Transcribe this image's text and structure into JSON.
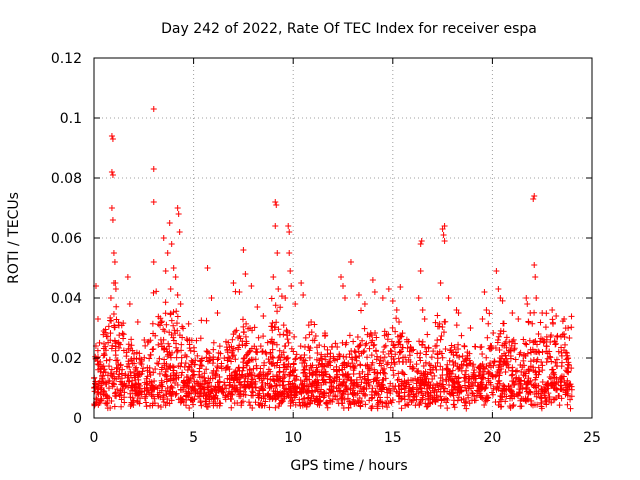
{
  "chart_data": {
    "type": "scatter",
    "title": "Day 242 of 2022, Rate Of TEC Index for receiver espa",
    "xlabel": "GPS time / hours",
    "ylabel": "ROTI / TECUs",
    "xlim": [
      0,
      25
    ],
    "ylim": [
      0,
      0.12
    ],
    "xticks": [
      0,
      5,
      10,
      15,
      20,
      25
    ],
    "xtick_labels": [
      "0",
      "5",
      "10",
      "15",
      "20",
      "25"
    ],
    "yticks": [
      0,
      0.02,
      0.04,
      0.06,
      0.08,
      0.1,
      0.12
    ],
    "ytick_labels": [
      "0",
      "0.02",
      "0.04",
      "0.06",
      "0.08",
      "0.1",
      "0.12"
    ],
    "grid": true,
    "marker": "+",
    "series": [
      {
        "name": "ROTI",
        "color": "#ff0000",
        "note": "dense band of ~0.003-0.03 TECU/s from 0 to 24 h with sparse higher values",
        "outliers": [
          {
            "x": 0.1,
            "y": 0.044
          },
          {
            "x": 0.2,
            "y": 0.033
          },
          {
            "x": 0.9,
            "y": 0.094
          },
          {
            "x": 0.95,
            "y": 0.093
          },
          {
            "x": 0.9,
            "y": 0.082
          },
          {
            "x": 0.95,
            "y": 0.081
          },
          {
            "x": 0.9,
            "y": 0.07
          },
          {
            "x": 0.95,
            "y": 0.066
          },
          {
            "x": 1.0,
            "y": 0.055
          },
          {
            "x": 1.05,
            "y": 0.052
          },
          {
            "x": 1.0,
            "y": 0.045
          },
          {
            "x": 1.1,
            "y": 0.043
          },
          {
            "x": 0.85,
            "y": 0.04
          },
          {
            "x": 1.7,
            "y": 0.047
          },
          {
            "x": 1.8,
            "y": 0.038
          },
          {
            "x": 2.2,
            "y": 0.032
          },
          {
            "x": 3.0,
            "y": 0.103
          },
          {
            "x": 3.0,
            "y": 0.083
          },
          {
            "x": 3.0,
            "y": 0.072
          },
          {
            "x": 3.0,
            "y": 0.052
          },
          {
            "x": 3.5,
            "y": 0.06
          },
          {
            "x": 3.6,
            "y": 0.049
          },
          {
            "x": 3.7,
            "y": 0.055
          },
          {
            "x": 3.8,
            "y": 0.065
          },
          {
            "x": 3.9,
            "y": 0.058
          },
          {
            "x": 4.0,
            "y": 0.05
          },
          {
            "x": 3.85,
            "y": 0.043
          },
          {
            "x": 4.2,
            "y": 0.07
          },
          {
            "x": 4.25,
            "y": 0.068
          },
          {
            "x": 4.3,
            "y": 0.062
          },
          {
            "x": 4.1,
            "y": 0.047
          },
          {
            "x": 4.2,
            "y": 0.041
          },
          {
            "x": 4.35,
            "y": 0.038
          },
          {
            "x": 5.7,
            "y": 0.05
          },
          {
            "x": 5.9,
            "y": 0.04
          },
          {
            "x": 6.2,
            "y": 0.035
          },
          {
            "x": 7.0,
            "y": 0.045
          },
          {
            "x": 7.3,
            "y": 0.042
          },
          {
            "x": 7.5,
            "y": 0.056
          },
          {
            "x": 7.6,
            "y": 0.048
          },
          {
            "x": 7.9,
            "y": 0.044
          },
          {
            "x": 8.2,
            "y": 0.037
          },
          {
            "x": 8.5,
            "y": 0.034
          },
          {
            "x": 9.1,
            "y": 0.072
          },
          {
            "x": 9.15,
            "y": 0.071
          },
          {
            "x": 9.1,
            "y": 0.064
          },
          {
            "x": 9.2,
            "y": 0.055
          },
          {
            "x": 9.0,
            "y": 0.047
          },
          {
            "x": 9.25,
            "y": 0.043
          },
          {
            "x": 9.6,
            "y": 0.04
          },
          {
            "x": 9.75,
            "y": 0.064
          },
          {
            "x": 9.8,
            "y": 0.062
          },
          {
            "x": 9.8,
            "y": 0.055
          },
          {
            "x": 9.85,
            "y": 0.049
          },
          {
            "x": 9.9,
            "y": 0.044
          },
          {
            "x": 10.1,
            "y": 0.038
          },
          {
            "x": 10.4,
            "y": 0.045
          },
          {
            "x": 10.5,
            "y": 0.041
          },
          {
            "x": 10.9,
            "y": 0.032
          },
          {
            "x": 12.4,
            "y": 0.047
          },
          {
            "x": 12.5,
            "y": 0.044
          },
          {
            "x": 12.6,
            "y": 0.04
          },
          {
            "x": 12.9,
            "y": 0.052
          },
          {
            "x": 13.3,
            "y": 0.041
          },
          {
            "x": 13.6,
            "y": 0.038
          },
          {
            "x": 14.0,
            "y": 0.046
          },
          {
            "x": 14.1,
            "y": 0.042
          },
          {
            "x": 14.5,
            "y": 0.04
          },
          {
            "x": 14.8,
            "y": 0.043
          },
          {
            "x": 15.0,
            "y": 0.039
          },
          {
            "x": 15.2,
            "y": 0.036
          },
          {
            "x": 16.4,
            "y": 0.058
          },
          {
            "x": 16.45,
            "y": 0.059
          },
          {
            "x": 16.4,
            "y": 0.049
          },
          {
            "x": 16.3,
            "y": 0.04
          },
          {
            "x": 16.5,
            "y": 0.036
          },
          {
            "x": 16.6,
            "y": 0.033
          },
          {
            "x": 17.5,
            "y": 0.063
          },
          {
            "x": 17.6,
            "y": 0.064
          },
          {
            "x": 17.55,
            "y": 0.061
          },
          {
            "x": 17.6,
            "y": 0.059
          },
          {
            "x": 17.4,
            "y": 0.045
          },
          {
            "x": 17.8,
            "y": 0.04
          },
          {
            "x": 18.2,
            "y": 0.036
          },
          {
            "x": 18.3,
            "y": 0.035
          },
          {
            "x": 18.9,
            "y": 0.03
          },
          {
            "x": 19.6,
            "y": 0.042
          },
          {
            "x": 19.7,
            "y": 0.036
          },
          {
            "x": 19.5,
            "y": 0.033
          },
          {
            "x": 20.2,
            "y": 0.049
          },
          {
            "x": 20.3,
            "y": 0.043
          },
          {
            "x": 20.4,
            "y": 0.04
          },
          {
            "x": 21.0,
            "y": 0.035
          },
          {
            "x": 21.3,
            "y": 0.033
          },
          {
            "x": 21.7,
            "y": 0.04
          },
          {
            "x": 21.75,
            "y": 0.038
          },
          {
            "x": 21.9,
            "y": 0.035
          },
          {
            "x": 22.05,
            "y": 0.073
          },
          {
            "x": 22.1,
            "y": 0.074
          },
          {
            "x": 22.1,
            "y": 0.051
          },
          {
            "x": 22.15,
            "y": 0.047
          },
          {
            "x": 22.2,
            "y": 0.04
          },
          {
            "x": 22.5,
            "y": 0.035
          },
          {
            "x": 23.0,
            "y": 0.036
          },
          {
            "x": 23.2,
            "y": 0.034
          },
          {
            "x": 23.6,
            "y": 0.033
          },
          {
            "x": 23.8,
            "y": 0.03
          }
        ]
      }
    ]
  }
}
